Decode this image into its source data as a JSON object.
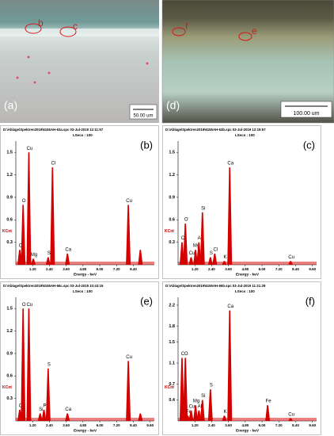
{
  "images": [
    {
      "panel": "(a)",
      "scale": "50.00 um",
      "markers": [
        "b",
        "c"
      ]
    },
    {
      "panel": "(d)",
      "scale": "100.00 um",
      "markers": [
        "f",
        "e"
      ]
    }
  ],
  "chart_data": [
    {
      "type": "spectrum",
      "panel": "(b)",
      "header": "D:\\Ablage\\Spektren2019\\6155AH-63a.spc  03-Jul-2019 12:11:57",
      "lsecs": "LSecs : 100",
      "ylabel": "KCnt",
      "xlabel": "Energy - keV",
      "color": "#d40000",
      "categories": [
        "C",
        "O",
        "Cu",
        "Mg",
        "S",
        "Cl",
        "Ca",
        "Cu",
        null
      ],
      "x": [
        0.28,
        0.52,
        0.93,
        1.25,
        2.31,
        2.62,
        3.69,
        8.04,
        8.9
      ],
      "values": [
        0.2,
        0.8,
        1.5,
        0.08,
        0.1,
        1.3,
        0.15,
        0.8,
        0.2
      ],
      "xlim": [
        0,
        9.9
      ],
      "ylim": [
        0,
        1.65
      ],
      "xticks": [
        {
          "value": 1.2,
          "label": "1.20"
        },
        {
          "value": 2.4,
          "label": "2.40"
        },
        {
          "value": 3.6,
          "label": "3.60"
        },
        {
          "value": 4.8,
          "label": "4.80"
        },
        {
          "value": 6,
          "label": "6.00"
        },
        {
          "value": 7.2,
          "label": "7.20"
        },
        {
          "value": 8.4,
          "label": "8.40"
        }
      ],
      "yticks": [
        0.3,
        0.6,
        0.9,
        1.2,
        1.5
      ]
    },
    {
      "type": "spectrum",
      "panel": "(c)",
      "header": "D:\\Ablage\\Spektren2019\\6155AH-63b.spc  03-Jul-2019 12:19:57",
      "lsecs": "LSecs : 100",
      "ylabel": "KCnt",
      "xlabel": "Energy - keV",
      "color": "#d40000",
      "categories": [
        "C",
        "O",
        "Cu",
        "Mg",
        "Al",
        "Si",
        "S",
        "Cl",
        "K",
        "Ca",
        "Cu"
      ],
      "x": [
        0.28,
        0.52,
        0.93,
        1.25,
        1.49,
        1.74,
        2.31,
        2.62,
        3.31,
        3.69,
        8.04
      ],
      "values": [
        0.3,
        0.55,
        0.1,
        0.2,
        0.3,
        0.7,
        0.1,
        0.15,
        0.05,
        1.3,
        0.05
      ],
      "xlim": [
        0,
        9.9
      ],
      "ylim": [
        0,
        1.65
      ],
      "xticks": [
        {
          "value": 1.2,
          "label": "1.20"
        },
        {
          "value": 2.4,
          "label": "2.40"
        },
        {
          "value": 3.6,
          "label": "3.60"
        },
        {
          "value": 4.8,
          "label": "4.80"
        },
        {
          "value": 6,
          "label": "6.00"
        },
        {
          "value": 7.2,
          "label": "7.20"
        },
        {
          "value": 8.4,
          "label": "8.40"
        },
        {
          "value": 9.6,
          "label": "9.60"
        }
      ],
      "yticks": [
        0.3,
        0.6,
        0.9,
        1.2,
        1.5
      ]
    },
    {
      "type": "spectrum",
      "panel": "(e)",
      "header": "D:\\Ablage\\Spektren2019\\6155AH-66c.spc  03-Jul-2019 10:43:15",
      "lsecs": "LSecs : 100",
      "ylabel": "KCnt",
      "xlabel": "Energy - keV",
      "color": "#d40000",
      "categories": [
        "C",
        "O",
        "Cu",
        "Si",
        "P",
        "S",
        "Ca",
        "Cu",
        null
      ],
      "x": [
        0.28,
        0.52,
        0.93,
        1.74,
        2.01,
        2.31,
        3.69,
        8.04,
        8.9
      ],
      "values": [
        0.15,
        1.5,
        1.5,
        0.1,
        0.15,
        0.7,
        0.1,
        0.8,
        0.1
      ],
      "xlim": [
        0,
        9.9
      ],
      "ylim": [
        0,
        1.65
      ],
      "xticks": [
        {
          "value": 1.2,
          "label": "1.20"
        },
        {
          "value": 2.4,
          "label": "2.40"
        },
        {
          "value": 3.6,
          "label": "3.60"
        },
        {
          "value": 4.8,
          "label": "4.80"
        },
        {
          "value": 6,
          "label": "6.00"
        },
        {
          "value": 7.2,
          "label": "7.20"
        },
        {
          "value": 8.4,
          "label": "8.40"
        },
        {
          "value": 9.6,
          "label": "9.60"
        }
      ],
      "yticks": [
        0.3,
        0.6,
        0.9,
        1.2,
        1.5
      ]
    },
    {
      "type": "spectrum",
      "panel": "(f)",
      "header": "D:\\Ablage\\Spektren2019\\6155AH-66b.spc  03-Jul-2019 11:21:29",
      "lsecs": "LSecs : 100",
      "ylabel": "KCnt",
      "xlabel": "Energy - keV",
      "color": "#d40000",
      "categories": [
        "C",
        "O",
        "Fe",
        "Cu",
        "Mg",
        "Al",
        "Si",
        "S",
        "K",
        "Ca",
        "Fe",
        "Cu"
      ],
      "x": [
        0.28,
        0.52,
        0.7,
        0.93,
        1.25,
        1.49,
        1.74,
        2.31,
        3.31,
        3.69,
        6.4,
        8.04
      ],
      "values": [
        1.2,
        1.2,
        0.1,
        0.2,
        0.3,
        0.2,
        0.4,
        0.6,
        0.1,
        2.1,
        0.3,
        0.05
      ],
      "xlim": [
        0,
        9.9
      ],
      "ylim": [
        0,
        2.35
      ],
      "xticks": [
        {
          "value": 1.2,
          "label": "1.20"
        },
        {
          "value": 2.4,
          "label": "2.40"
        },
        {
          "value": 3.6,
          "label": "3.60"
        },
        {
          "value": 4.8,
          "label": "4.80"
        },
        {
          "value": 6,
          "label": "6.00"
        },
        {
          "value": 7.2,
          "label": "7.20"
        },
        {
          "value": 8.4,
          "label": "8.40"
        },
        {
          "value": 9.6,
          "label": "9.60"
        }
      ],
      "yticks": [
        0.4,
        0.7,
        1.1,
        1.5,
        1.8,
        2.2
      ]
    }
  ]
}
